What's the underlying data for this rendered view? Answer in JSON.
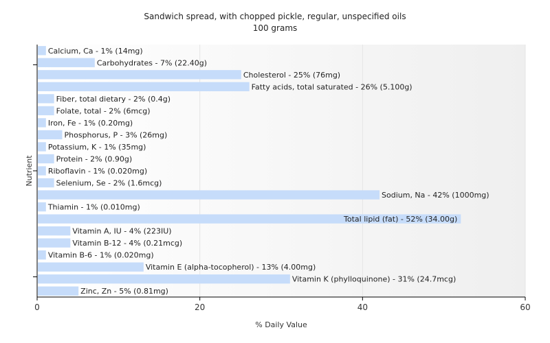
{
  "chart_data": {
    "type": "bar",
    "orientation": "horizontal",
    "title": "Sandwich spread, with chopped pickle, regular, unspecified oils",
    "subtitle": "100 grams",
    "xlabel": "% Daily Value",
    "ylabel": "Nutrient",
    "xlim": [
      0,
      60
    ],
    "xticks": [
      0,
      20,
      40,
      60
    ],
    "grid": true,
    "categories": [
      "Calcium, Ca",
      "Carbohydrates",
      "Cholesterol",
      "Fatty acids, total saturated",
      "Fiber, total dietary",
      "Folate, total",
      "Iron, Fe",
      "Phosphorus, P",
      "Potassium, K",
      "Protein",
      "Riboflavin",
      "Selenium, Se",
      "Sodium, Na",
      "Thiamin",
      "Total lipid (fat)",
      "Vitamin A, IU",
      "Vitamin B-12",
      "Vitamin B-6",
      "Vitamin E (alpha-tocopherol)",
      "Vitamin K (phylloquinone)",
      "Zinc, Zn"
    ],
    "values": [
      1,
      7,
      25,
      26,
      2,
      2,
      1,
      3,
      1,
      2,
      1,
      2,
      42,
      1,
      52,
      4,
      4,
      1,
      13,
      31,
      5
    ],
    "labels": [
      "Calcium, Ca - 1% (14mg)",
      "Carbohydrates - 7% (22.40g)",
      "Cholesterol - 25% (76mg)",
      "Fatty acids, total saturated - 26% (5.100g)",
      "Fiber, total dietary - 2% (0.4g)",
      "Folate, total - 2% (6mcg)",
      "Iron, Fe - 1% (0.20mg)",
      "Phosphorus, P - 3% (26mg)",
      "Potassium, K - 1% (35mg)",
      "Protein - 2% (0.90g)",
      "Riboflavin - 1% (0.020mg)",
      "Selenium, Se - 2% (1.6mcg)",
      "Sodium, Na - 42% (1000mg)",
      "Thiamin - 1% (0.010mg)",
      "Total lipid (fat) - 52% (34.00g)",
      "Vitamin A, IU - 4% (223IU)",
      "Vitamin B-12 - 4% (0.21mcg)",
      "Vitamin B-6 - 1% (0.020mg)",
      "Vitamin E (alpha-tocopherol) - 13% (4.00mg)",
      "Vitamin K (phylloquinone) - 31% (24.7mcg)",
      "Zinc, Zn - 5% (0.81mg)"
    ],
    "bar_color": "#c6dcfa"
  }
}
